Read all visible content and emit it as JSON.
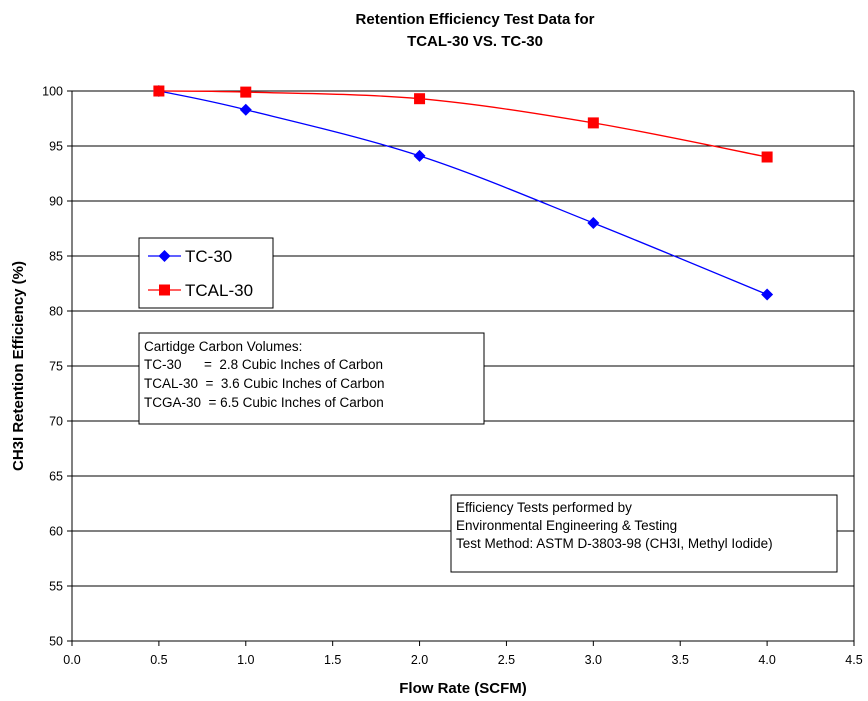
{
  "chart_data": {
    "type": "line",
    "title": [
      "Retention Efficiency Test Data for",
      "TCAL-30 VS. TC-30"
    ],
    "xlabel": "Flow Rate (SCFM)",
    "ylabel": "CH3I Retention Efficiency (%)",
    "xlim": [
      0.0,
      4.5
    ],
    "ylim": [
      50,
      100
    ],
    "x_ticks": [
      "0.0",
      "0.5",
      "1.0",
      "1.5",
      "2.0",
      "2.5",
      "3.0",
      "3.5",
      "4.0",
      "4.5"
    ],
    "y_ticks": [
      "50",
      "55",
      "60",
      "65",
      "70",
      "75",
      "80",
      "85",
      "90",
      "95",
      "100"
    ],
    "grid": "horizontal",
    "legend_position": "middle-left",
    "series": [
      {
        "name": "TC-30",
        "color": "#0000FF",
        "marker": "diamond",
        "x": [
          0.5,
          1.0,
          2.0,
          3.0,
          4.0
        ],
        "y": [
          100.0,
          98.3,
          94.1,
          88.0,
          81.5
        ]
      },
      {
        "name": "TCAL-30",
        "color": "#FF0000",
        "marker": "square",
        "x": [
          0.5,
          1.0,
          2.0,
          3.0,
          4.0
        ],
        "y": [
          100.0,
          99.9,
          99.3,
          97.1,
          94.0
        ]
      }
    ],
    "annotations": [
      {
        "name": "carbon-volumes-note",
        "lines": [
          "Cartidge Carbon Volumes:",
          "TC-30      =  2.8 Cubic Inches of Carbon",
          "TCAL-30  =  3.6 Cubic Inches of Carbon",
          "TCGA-30  = 6.5 Cubic Inches of Carbon"
        ]
      },
      {
        "name": "test-info-note",
        "lines": [
          "Efficiency Tests performed by",
          "Environmental Engineering & Testing",
          "Test Method: ASTM D-3803-98 (CH3I, Methyl Iodide)"
        ]
      }
    ]
  }
}
